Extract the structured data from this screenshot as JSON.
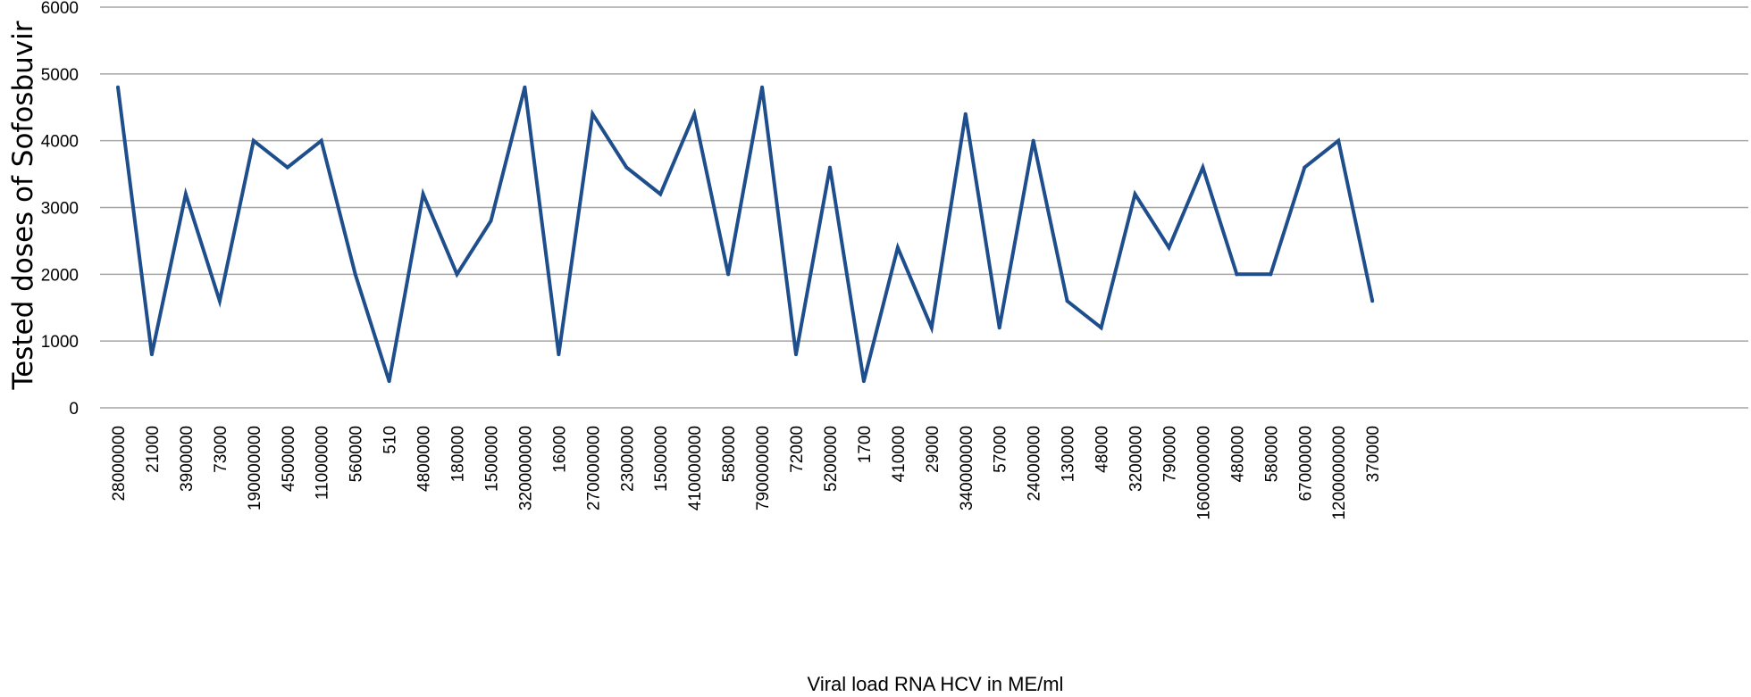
{
  "chart_data": {
    "type": "line",
    "title": "",
    "xlabel": "Viral load RNA HCV in ME/ml",
    "ylabel": "Tested doses of  Sofosbuvir",
    "ylim": [
      0,
      6000
    ],
    "yticks": [
      "0",
      "1000",
      "2000",
      "3000",
      "4000",
      "5000",
      "6000"
    ],
    "grid": true,
    "categories": [
      "28000000",
      "21000",
      "3900000",
      "73000",
      "190000000",
      "4500000",
      "11000000",
      "560000",
      "510",
      "4800000",
      "180000",
      "1500000",
      "320000000",
      "16000",
      "270000000",
      "2300000",
      "1500000",
      "410000000",
      "580000",
      "790000000",
      "72000",
      "5200000",
      "1700",
      "410000",
      "29000",
      "340000000",
      "57000",
      "24000000",
      "130000",
      "48000",
      "3200000",
      "790000",
      "1600000000",
      "480000",
      "580000",
      "67000000",
      "1200000000",
      "370000"
    ],
    "series": [
      {
        "name": "Tested doses of Sofosbuvir",
        "color": "#1f4e8c",
        "values": [
          4800,
          800,
          3200,
          1600,
          4000,
          3600,
          4000,
          2000,
          400,
          3200,
          2000,
          2800,
          4800,
          800,
          4400,
          3600,
          3200,
          4400,
          2000,
          4800,
          800,
          3600,
          400,
          2400,
          1200,
          4400,
          1200,
          4000,
          1600,
          1200,
          3200,
          2400,
          3600,
          2000,
          2000,
          3600,
          4000,
          1600
        ]
      }
    ]
  }
}
